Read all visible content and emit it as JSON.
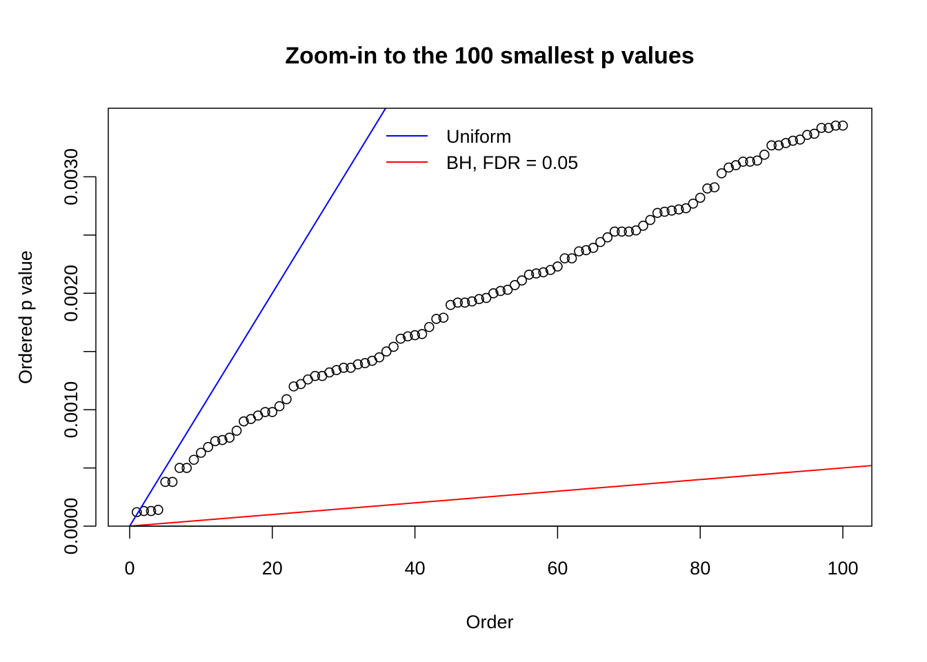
{
  "chart_data": {
    "type": "scatter",
    "title": "Zoom-in to the 100 smallest p values",
    "xlabel": "Order",
    "ylabel": "Ordered p value",
    "xlim": [
      0,
      100
    ],
    "ylim": [
      0,
      0.0035
    ],
    "x_ticks": [
      0,
      20,
      40,
      60,
      80,
      100
    ],
    "x_tick_labels": [
      "0",
      "20",
      "40",
      "60",
      "80",
      "100"
    ],
    "y_ticks": [
      0,
      0.0005,
      0.001,
      0.0015,
      0.002,
      0.0025,
      0.003
    ],
    "y_tick_labels": [
      "0.0000",
      "",
      "0.0010",
      "",
      "0.0020",
      "",
      "0.0030"
    ],
    "grid": false,
    "legend_position": "top-center",
    "series": [
      {
        "name": "",
        "style": "points",
        "color": "#000000",
        "x": [
          1,
          2,
          3,
          4,
          5,
          6,
          7,
          8,
          9,
          10,
          11,
          12,
          13,
          14,
          15,
          16,
          17,
          18,
          19,
          20,
          21,
          22,
          23,
          24,
          25,
          26,
          27,
          28,
          29,
          30,
          31,
          32,
          33,
          34,
          35,
          36,
          37,
          38,
          39,
          40,
          41,
          42,
          43,
          44,
          45,
          46,
          47,
          48,
          49,
          50,
          51,
          52,
          53,
          54,
          55,
          56,
          57,
          58,
          59,
          60,
          61,
          62,
          63,
          64,
          65,
          66,
          67,
          68,
          69,
          70,
          71,
          72,
          73,
          74,
          75,
          76,
          77,
          78,
          79,
          80,
          81,
          82,
          83,
          84,
          85,
          86,
          87,
          88,
          89,
          90,
          91,
          92,
          93,
          94,
          95,
          96,
          97,
          98,
          99,
          100
        ],
        "y": [
          0.00012,
          0.00013,
          0.00013,
          0.00014,
          0.00038,
          0.00038,
          0.0005,
          0.0005,
          0.00057,
          0.00063,
          0.00068,
          0.00073,
          0.00074,
          0.00076,
          0.00082,
          0.0009,
          0.00092,
          0.00095,
          0.00098,
          0.00098,
          0.00103,
          0.00109,
          0.0012,
          0.00122,
          0.00126,
          0.00129,
          0.00129,
          0.00132,
          0.00134,
          0.00136,
          0.00136,
          0.00139,
          0.0014,
          0.00142,
          0.00145,
          0.0015,
          0.00154,
          0.00161,
          0.00163,
          0.00164,
          0.00165,
          0.00171,
          0.00178,
          0.00179,
          0.0019,
          0.00192,
          0.00192,
          0.00193,
          0.00195,
          0.00196,
          0.002,
          0.00202,
          0.00203,
          0.00207,
          0.00211,
          0.00216,
          0.00217,
          0.00218,
          0.0022,
          0.00223,
          0.0023,
          0.0023,
          0.00236,
          0.00237,
          0.00239,
          0.00244,
          0.00248,
          0.00253,
          0.00253,
          0.00253,
          0.00254,
          0.00258,
          0.00263,
          0.00269,
          0.0027,
          0.00271,
          0.00272,
          0.00273,
          0.00277,
          0.00282,
          0.0029,
          0.00291,
          0.00303,
          0.00308,
          0.0031,
          0.00313,
          0.00313,
          0.00314,
          0.00319,
          0.00327,
          0.00327,
          0.00329,
          0.00331,
          0.00332,
          0.00336,
          0.00337,
          0.00342,
          0.00342,
          0.00344,
          0.00344
        ]
      },
      {
        "name": "Uniform",
        "style": "line",
        "color": "#0000ff",
        "x": [
          0,
          36
        ],
        "y": [
          0,
          0.0036
        ]
      },
      {
        "name": "BH, FDR = 0.05",
        "style": "line",
        "color": "#ff0000",
        "x": [
          0,
          104
        ],
        "y": [
          0,
          0.00052
        ]
      }
    ]
  }
}
